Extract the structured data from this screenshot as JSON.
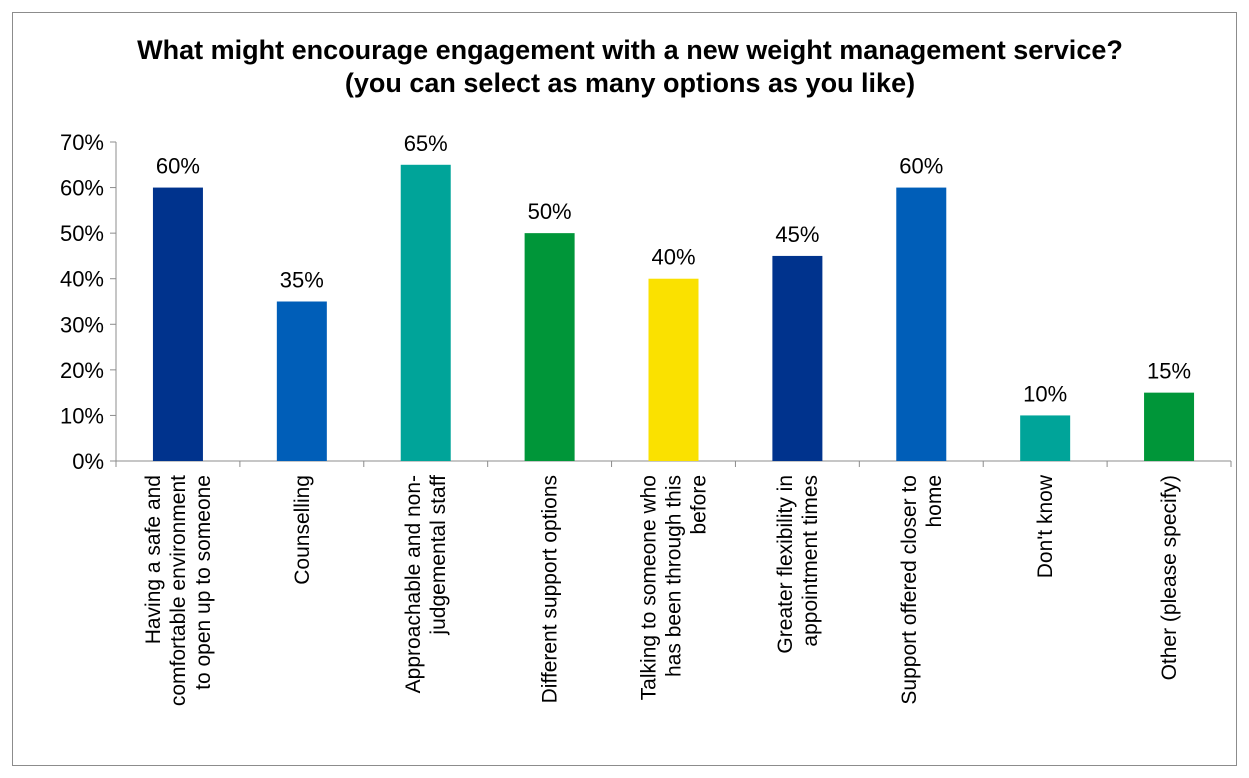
{
  "chart_data": {
    "type": "bar",
    "title": "What might encourage engagement with a new weight management service? (you can select as many options as you like)",
    "xlabel": "",
    "ylabel": "",
    "ylim": [
      0,
      70
    ],
    "y_ticks": [
      "0%",
      "10%",
      "20%",
      "30%",
      "40%",
      "50%",
      "60%",
      "70%"
    ],
    "grid": false,
    "legend": "none",
    "categories": [
      [
        "Having a safe and",
        "comfortable environment",
        "to open up to someone"
      ],
      [
        "Counselling"
      ],
      [
        "Approachable and non-",
        "judgemental staff"
      ],
      [
        "Different support options"
      ],
      [
        "Talking to someone who",
        "has been through this",
        "before"
      ],
      [
        "Greater flexibility in",
        "appointment times"
      ],
      [
        "Support offered closer to",
        "home"
      ],
      [
        "Don't know"
      ],
      [
        "Other (please specify)"
      ]
    ],
    "values": [
      60,
      35,
      65,
      50,
      40,
      45,
      60,
      10,
      15
    ],
    "data_labels": [
      "60%",
      "35%",
      "65%",
      "50%",
      "40%",
      "45%",
      "60%",
      "10%",
      "15%"
    ],
    "colors": [
      "#00338d",
      "#005eb8",
      "#00a499",
      "#009639",
      "#fae100",
      "#00338d",
      "#005eb8",
      "#00a499",
      "#009639"
    ]
  }
}
